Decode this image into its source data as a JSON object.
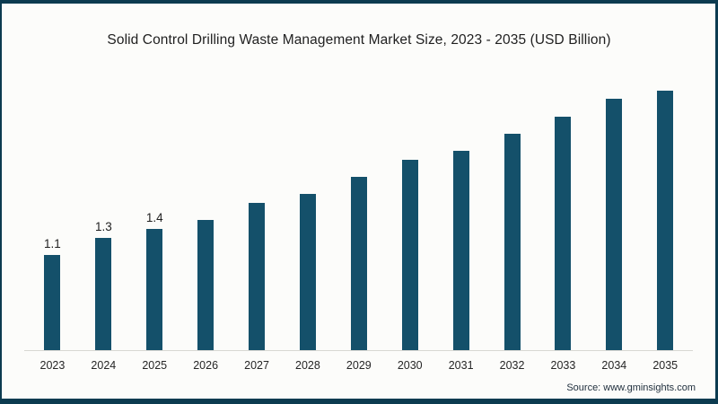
{
  "chart_data": {
    "type": "bar",
    "title": "Solid Control Drilling Waste Management Market Size, 2023 - 2035 (USD Billion)",
    "categories": [
      "2023",
      "2024",
      "2025",
      "2026",
      "2027",
      "2028",
      "2029",
      "2030",
      "2031",
      "2032",
      "2033",
      "2034",
      "2035"
    ],
    "values": [
      1.1,
      1.3,
      1.4,
      1.5,
      1.7,
      1.8,
      2.0,
      2.2,
      2.3,
      2.5,
      2.7,
      2.9,
      3.0
    ],
    "bar_labels": [
      "1.1",
      "1.3",
      "1.4",
      "",
      "",
      "",
      "",
      "",
      "",
      "",
      "",
      "",
      ""
    ],
    "xlabel": "",
    "ylabel": "",
    "ylim": [
      0,
      3.6
    ],
    "grid": false,
    "legend": false,
    "bar_color": "#14506a"
  },
  "source": {
    "label": "Source: www.gminsights.com"
  },
  "colors": {
    "bar": "#14506a",
    "frame_border": "#0c3b50",
    "axis_line": "#d8d8d3",
    "background": "#fcfcfa",
    "title_text": "#1f1f1f",
    "source_text": "#22313f"
  }
}
